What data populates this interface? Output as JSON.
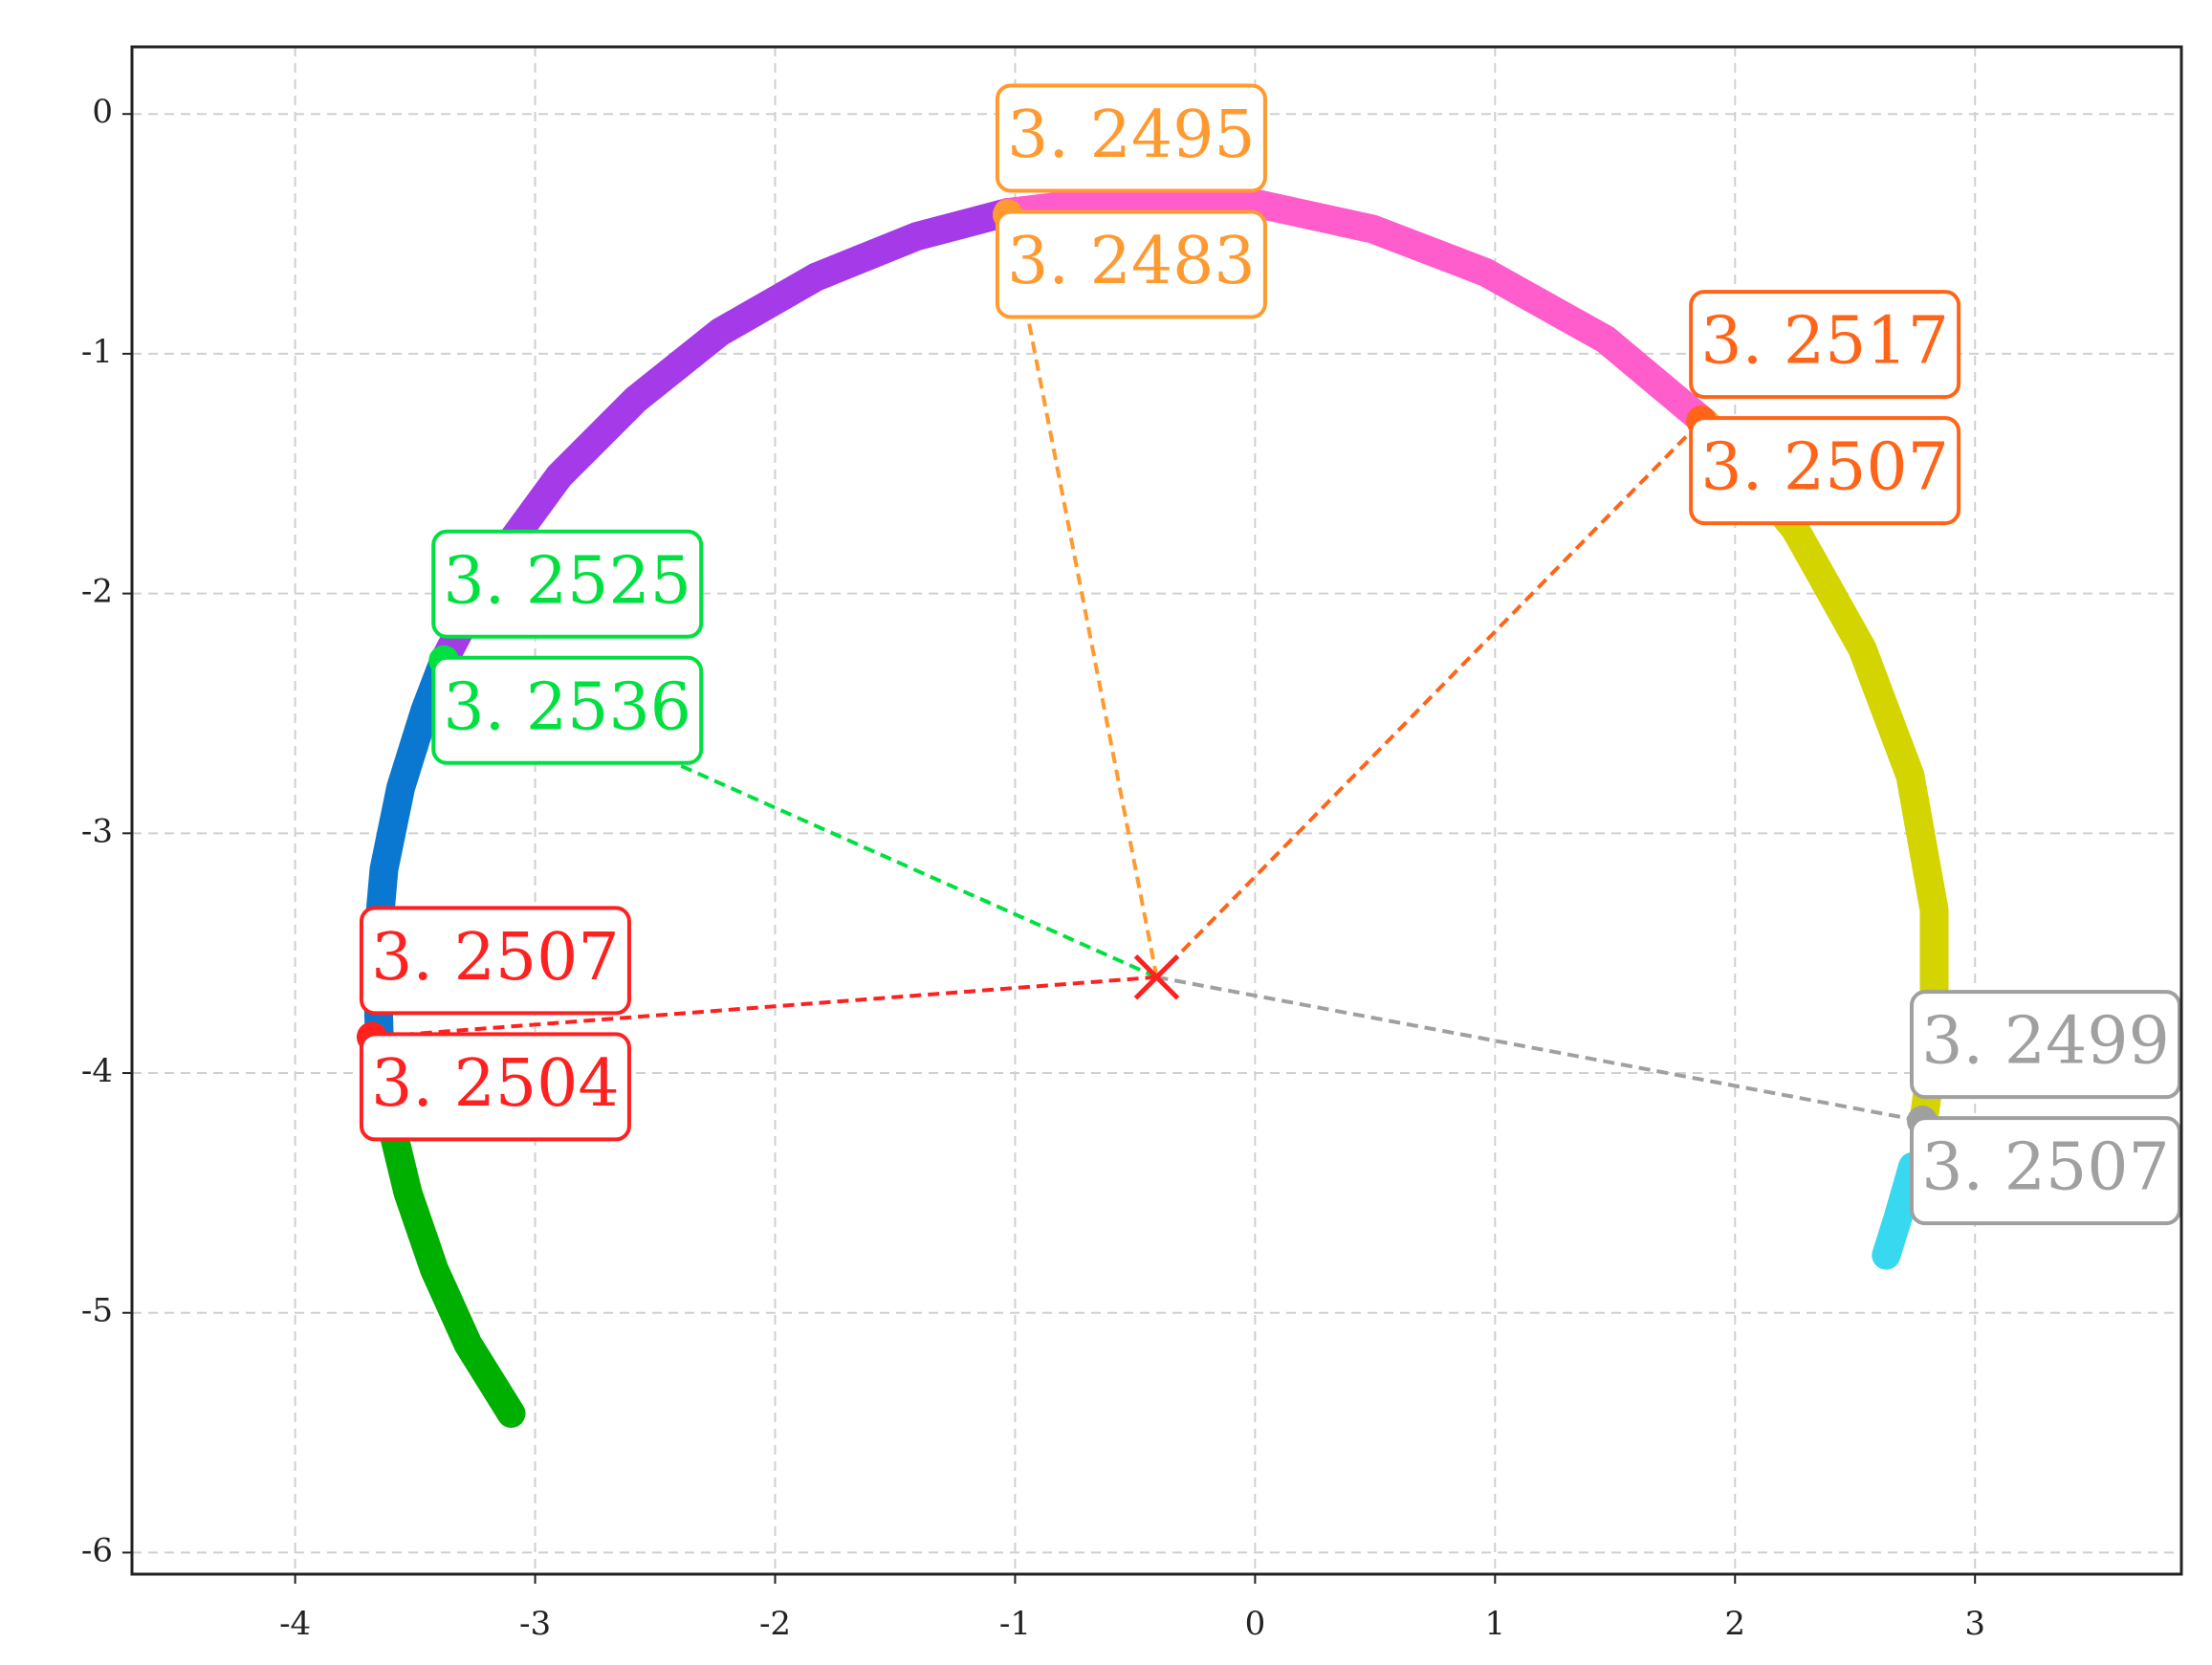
{
  "chart_data": {
    "type": "line",
    "xlim": [
      -4.68,
      3.86
    ],
    "ylim": [
      -6.09,
      0.28
    ],
    "xticks": [
      -4,
      -3,
      -2,
      -1,
      0,
      1,
      2,
      3
    ],
    "yticks": [
      0,
      -1,
      -2,
      -3,
      -4,
      -5,
      -6
    ],
    "grid": true,
    "series": [
      {
        "name": "green",
        "color": "#00b000",
        "x": [
          -3.1,
          -3.28,
          -3.42,
          -3.53,
          -3.61
        ],
        "y": [
          -5.42,
          -5.13,
          -4.82,
          -4.5,
          -4.17
        ]
      },
      {
        "name": "blue",
        "color": "#0a78d0",
        "x": [
          -3.61,
          -3.65,
          -3.66,
          -3.63,
          -3.56,
          -3.46,
          -3.38
        ],
        "y": [
          -4.17,
          -3.83,
          -3.49,
          -3.15,
          -2.81,
          -2.49,
          -2.28
        ]
      },
      {
        "name": "purple",
        "color": "#a43ae8",
        "x": [
          -3.38,
          -3.17,
          -2.9,
          -2.58,
          -2.23,
          -1.83,
          -1.41,
          -1.03
        ],
        "y": [
          -2.28,
          -1.88,
          -1.51,
          -1.19,
          -0.91,
          -0.68,
          -0.51,
          -0.41
        ]
      },
      {
        "name": "pink",
        "color": "#ff5ccc",
        "x": [
          -1.03,
          -0.52,
          -0.01,
          0.49,
          0.96,
          1.46,
          1.89
        ],
        "y": [
          -0.41,
          -0.35,
          -0.37,
          -0.48,
          -0.66,
          -0.94,
          -1.3
        ]
      },
      {
        "name": "yellow",
        "color": "#d4d400",
        "x": [
          1.89,
          2.25,
          2.53,
          2.73,
          2.83,
          2.83,
          2.79
        ],
        "y": [
          -1.3,
          -1.73,
          -2.23,
          -2.76,
          -3.32,
          -3.88,
          -4.17
        ]
      },
      {
        "name": "cyan",
        "color": "#38d8f0",
        "x": [
          2.74,
          2.68,
          2.63
        ],
        "y": [
          -4.39,
          -4.6,
          -4.76
        ]
      }
    ],
    "center": {
      "x": -0.41,
      "y": -3.6,
      "color": "#ff2020"
    },
    "highlights": [
      {
        "x": -1.03,
        "y": -0.42,
        "color": "#ff9a30",
        "labels": [
          "3. 2495",
          "3. 2483"
        ]
      },
      {
        "x": 1.86,
        "y": -1.28,
        "color": "#ff6418",
        "labels": [
          "3. 2517",
          "3. 2507"
        ]
      },
      {
        "x": -3.38,
        "y": -2.28,
        "color": "#00e040",
        "labels": [
          "3. 2525",
          "3. 2536"
        ]
      },
      {
        "x": -3.68,
        "y": -3.85,
        "color": "#ff2020",
        "labels": [
          "3. 2507",
          "3. 2504"
        ]
      },
      {
        "x": 2.78,
        "y": -4.2,
        "color": "#a0a0a0",
        "labels": [
          "3. 2499",
          "3. 2507"
        ]
      }
    ]
  }
}
